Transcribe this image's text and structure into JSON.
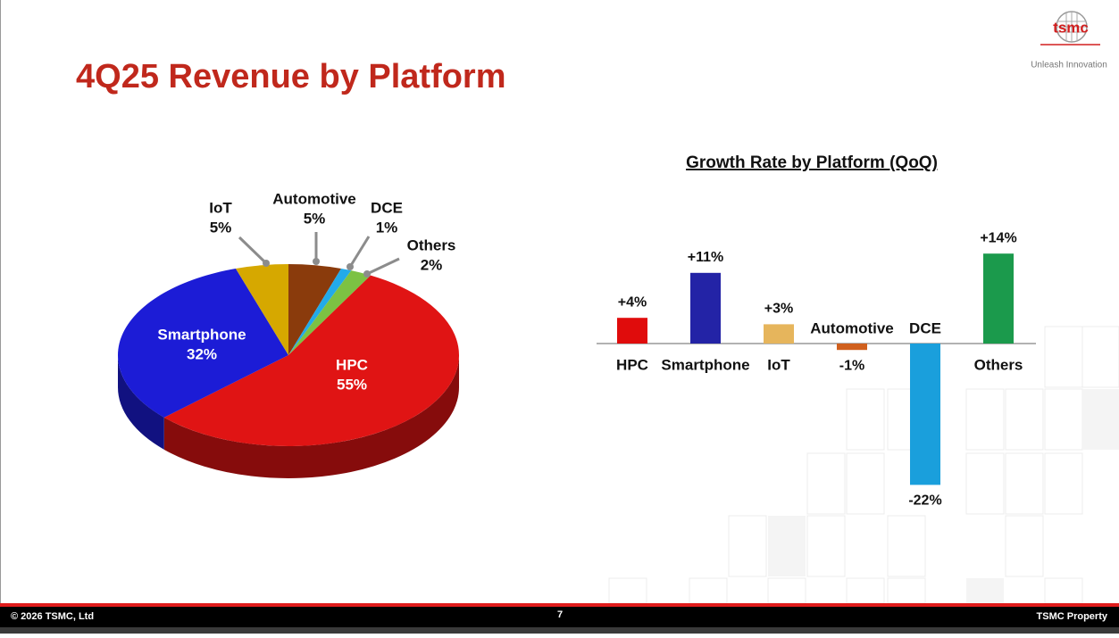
{
  "title": "4Q25 Revenue by Platform",
  "logo": {
    "name": "tsmc",
    "tagline": "Unleash Innovation"
  },
  "footer": {
    "copyright": "© 2026 TSMC, Ltd",
    "page": "7",
    "property": "TSMC Property"
  },
  "chart_data": [
    {
      "type": "pie",
      "categories": [
        "Automotive",
        "DCE",
        "Others",
        "HPC",
        "Smartphone",
        "IoT"
      ],
      "values": [
        5,
        1,
        2,
        55,
        32,
        5
      ],
      "value_labels": [
        "5%",
        "1%",
        "2%",
        "55%",
        "32%",
        "5%"
      ],
      "colors": [
        "#8a3b0c",
        "#22aaea",
        "#7cc243",
        "#e01414",
        "#1c1cd6",
        "#d6a800"
      ]
    },
    {
      "type": "bar",
      "title": "Growth Rate by Platform (QoQ)",
      "categories": [
        "HPC",
        "Smartphone",
        "IoT",
        "Automotive",
        "DCE",
        "Others"
      ],
      "values": [
        4,
        11,
        3,
        -1,
        -22,
        14
      ],
      "value_labels": [
        "+4%",
        "+11%",
        "+3%",
        "-1%",
        "-22%",
        "+14%"
      ],
      "colors": [
        "#e00c0c",
        "#2323a6",
        "#e6b55c",
        "#d0601e",
        "#1a9fdc",
        "#1b9a4c"
      ]
    }
  ]
}
